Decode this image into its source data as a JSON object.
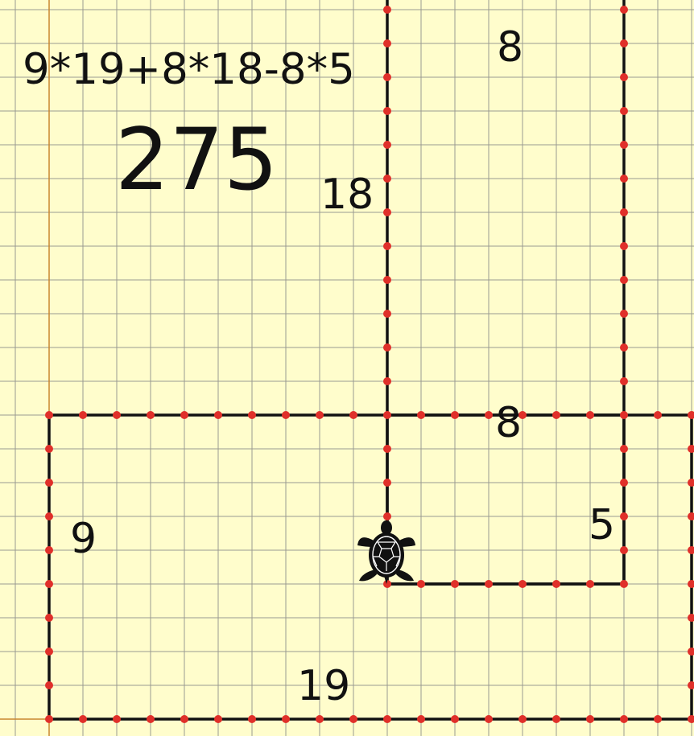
{
  "formula": "9*19+8*18-8*5",
  "total": "275",
  "dimension_labels": {
    "tall_rect_top": "8",
    "tall_rect_left": "18",
    "small_rect_top": "8",
    "small_rect_right": "5",
    "big_rect_left": "9",
    "big_rect_bottom": "19"
  },
  "rectangles": [
    {
      "name": "big-rectangle",
      "width_units": 19,
      "height_units": 9
    },
    {
      "name": "tall-rectangle",
      "width_units": 8,
      "height_units": 18
    },
    {
      "name": "small-overlap-rectangle",
      "width_units": 8,
      "height_units": 5
    }
  ],
  "colors": {
    "background": "#fffdcc",
    "grid": "#9a9a92",
    "axis": "#c8862e",
    "outline": "#111111",
    "dots": "#e0302a"
  },
  "icons": {
    "turtle": "turtle-icon"
  }
}
